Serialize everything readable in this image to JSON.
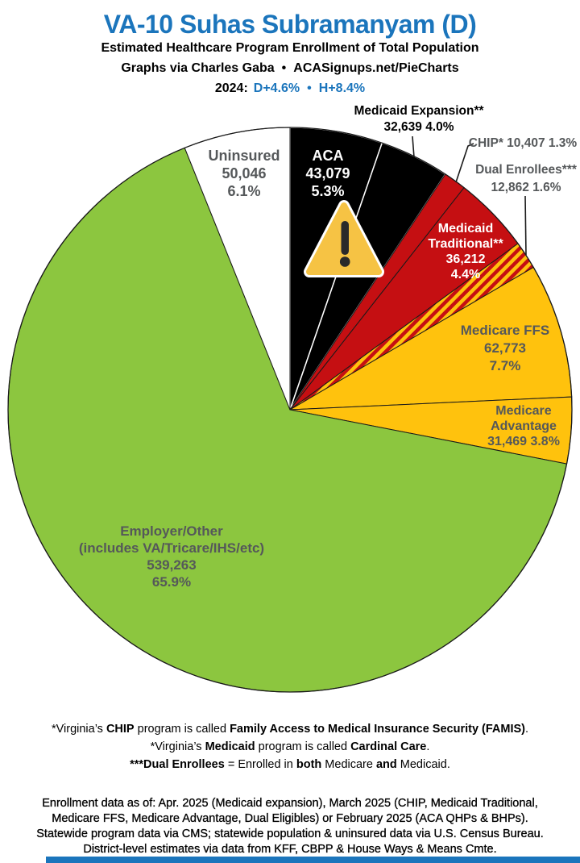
{
  "header": {
    "title": "VA-10 Suhas Subramanyam (D)",
    "subtitle1": "Estimated Healthcare Program Enrollment of Total Population",
    "credit_left": "Graphs via Charles Gaba",
    "credit_bullet": "•",
    "credit_site": "ACASignups.net/PieCharts",
    "year_label": "2024:",
    "metric_d": "D+4.6%",
    "metric_bullet": "•",
    "metric_h": "H+8.4%"
  },
  "colors": {
    "title_blue": "#1B75BC",
    "black_slice": "#000000",
    "red_slice": "#C50F12",
    "gold_slice": "#FFC20D",
    "green_slice": "#8CC63F",
    "white_slice": "#FFFFFF",
    "gray_label": "#55585A",
    "warning_amber": "#F6C344",
    "warning_dark": "#2A2A2A",
    "footer_bar_blue": "#1B75BC"
  },
  "chart_data": {
    "type": "pie",
    "title": "Estimated Healthcare Program Enrollment of Total Population",
    "start_angle_deg": 0,
    "direction": "clockwise",
    "legend_position": "none",
    "slices": [
      {
        "id": "aca",
        "name": "ACA",
        "enrollment": "43,079",
        "pct": 5.3,
        "color": "#000000",
        "stroke": "#FFFFFF",
        "stroke_width": 1.5
      },
      {
        "id": "medicaid-expansion",
        "name": "Medicaid Expansion**",
        "enrollment": "32,639",
        "pct": 4.0,
        "color": "#000000",
        "stroke": "#FFFFFF",
        "stroke_width": 1.5
      },
      {
        "id": "chip",
        "name": "CHIP*",
        "enrollment": "10,407",
        "pct": 1.3,
        "color": "#C50F12",
        "stroke": "#1A1A1A",
        "stroke_width": 1
      },
      {
        "id": "medicaid-traditional",
        "name": "Medicaid Traditional**",
        "enrollment": "36,212",
        "pct": 4.4,
        "color": "#C50F12",
        "stroke": "#1A1A1A",
        "stroke_width": 1
      },
      {
        "id": "dual-enrollees",
        "name": "Dual Enrollees***",
        "enrollment": "12,862",
        "pct": 1.6,
        "color": "hatch",
        "stroke": "#1A1A1A",
        "stroke_width": 1
      },
      {
        "id": "medicare-ffs",
        "name": "Medicare FFS",
        "enrollment": "62,773",
        "pct": 7.7,
        "color": "#FFC20D",
        "stroke": "#1A1A1A",
        "stroke_width": 1
      },
      {
        "id": "medicare-advantage",
        "name": "Medicare Advantage",
        "enrollment": "31,469",
        "pct": 3.8,
        "color": "#FFC20D",
        "stroke": "#1A1A1A",
        "stroke_width": 1
      },
      {
        "id": "employer-other",
        "name": "Employer/Other (includes VA/Tricare/IHS/etc)",
        "enrollment": "539,263",
        "pct": 65.9,
        "color": "#8CC63F",
        "stroke": "#1A1A1A",
        "stroke_width": 1
      },
      {
        "id": "uninsured",
        "name": "Uninsured",
        "enrollment": "50,046",
        "pct": 6.1,
        "color": "#FFFFFF",
        "stroke": "#1A1A1A",
        "stroke_width": 1
      }
    ]
  },
  "labels": {
    "uninsured": [
      "Uninsured",
      "50,046",
      "6.1%"
    ],
    "aca": [
      "ACA",
      "43,079",
      "5.3%"
    ],
    "medicaid_expansion": [
      "Medicaid Expansion**",
      "32,639 4.0%"
    ],
    "chip": [
      "CHIP* 10,407 1.3%"
    ],
    "dual": [
      "Dual Enrollees***",
      "12,862 1.6%"
    ],
    "medicaid_traditional": [
      "Medicaid",
      "Traditional**",
      "36,212",
      "4.4%"
    ],
    "medicare_ffs": [
      "Medicare FFS",
      "62,773",
      "7.7%"
    ],
    "medicare_advantage": [
      "Medicare",
      "Advantage",
      "31,469 3.8%"
    ],
    "employer": [
      "Employer/Other",
      "(includes VA/Tricare/IHS/etc)",
      "539,263",
      "65.9%"
    ]
  },
  "footnotes": {
    "lines": [
      {
        "segments": [
          {
            "t": "*Virginia’s ",
            "b": false
          },
          {
            "t": "CHIP",
            "b": true
          },
          {
            "t": " program is called ",
            "b": false
          },
          {
            "t": "Family Access to Medical Insurance Security (FAMIS)",
            "b": true
          },
          {
            "t": ".",
            "b": false
          }
        ]
      },
      {
        "segments": [
          {
            "t": "*Virginia’s ",
            "b": false
          },
          {
            "t": "Medicaid",
            "b": true
          },
          {
            "t": " program is called ",
            "b": false
          },
          {
            "t": "Cardinal Care",
            "b": true
          },
          {
            "t": ".",
            "b": false
          }
        ]
      },
      {
        "segments": [
          {
            "t": "***Dual Enrollees",
            "b": true
          },
          {
            "t": " = Enrolled in ",
            "b": false
          },
          {
            "t": "both",
            "b": true
          },
          {
            "t": " Medicare ",
            "b": false
          },
          {
            "t": "and",
            "b": true
          },
          {
            "t": " Medicaid.",
            "b": false
          }
        ]
      }
    ]
  },
  "source_note": {
    "lines": [
      "Enrollment data as of: Apr. 2025 (Medicaid expansion), March 2025 (CHIP, Medicaid Traditional,",
      "Medicare FFS, Medicare Advantage, Dual Eligibles) or February 2025 (ACA QHPs & BHPs).",
      "Statewide program data via CMS; statewide population & uninsured data via U.S. Census Bureau.",
      "District-level estimates via data from KFF, CBPP & House Ways & Means Cmte."
    ]
  }
}
